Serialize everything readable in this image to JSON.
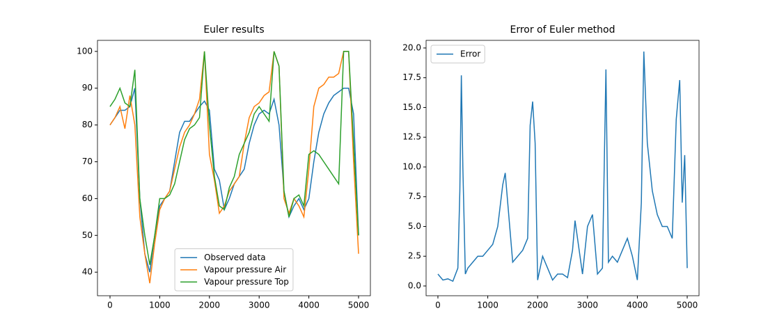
{
  "chart_data": [
    {
      "type": "line",
      "title": "Euler results",
      "x": [
        0,
        100,
        200,
        300,
        400,
        500,
        600,
        700,
        800,
        900,
        1000,
        1100,
        1200,
        1300,
        1400,
        1500,
        1600,
        1700,
        1800,
        1900,
        2000,
        2100,
        2200,
        2300,
        2400,
        2500,
        2600,
        2700,
        2800,
        2900,
        3000,
        3100,
        3200,
        3300,
        3400,
        3500,
        3600,
        3700,
        3800,
        3900,
        4000,
        4100,
        4200,
        4300,
        4400,
        4500,
        4600,
        4700,
        4800,
        4900,
        5000
      ],
      "series": [
        {
          "name": "Observed data",
          "color": "#1f77b4",
          "values": [
            80,
            82,
            84,
            84,
            85,
            90,
            60,
            45,
            40,
            50,
            58,
            60,
            62,
            70,
            78,
            81,
            81,
            83,
            85,
            86.5,
            84,
            68,
            65,
            57,
            60,
            64,
            66,
            68,
            75,
            80,
            83,
            84,
            83,
            87,
            80,
            62,
            55,
            58,
            60,
            57,
            60,
            70,
            78,
            83,
            86,
            88,
            89,
            90,
            90,
            83,
            50
          ]
        },
        {
          "name": "Vapour pressure Air",
          "color": "#ff7f0e",
          "values": [
            80,
            82,
            85,
            79,
            88,
            80,
            55,
            45,
            37,
            48,
            57,
            60,
            62,
            68,
            74,
            78,
            80,
            83,
            87,
            100,
            72,
            65,
            56,
            58,
            62,
            64,
            66,
            75,
            82,
            85,
            86,
            88,
            89,
            100,
            96,
            60,
            56,
            60,
            58,
            55,
            68,
            85,
            90,
            91,
            93,
            93,
            94,
            100,
            100,
            70,
            45
          ]
        },
        {
          "name": "Vapour pressure Top",
          "color": "#2ca02c",
          "values": [
            85,
            87,
            90,
            86,
            85,
            95,
            60,
            50,
            42,
            50,
            60,
            60,
            61,
            64,
            70,
            76,
            79,
            80,
            82,
            100,
            80,
            66,
            58,
            57,
            63,
            66,
            72,
            75,
            78,
            83,
            85,
            83,
            81,
            100,
            96,
            62,
            55,
            60,
            61,
            58,
            72,
            73,
            72,
            70,
            68,
            66,
            64,
            100,
            100,
            75,
            50
          ]
        }
      ],
      "xlim": [
        -252,
        5238
      ],
      "ylim": [
        33.6,
        103.0
      ],
      "xticks": [
        0,
        1000,
        2000,
        3000,
        4000,
        5000
      ],
      "yticks": [
        40,
        50,
        60,
        70,
        80,
        90,
        100
      ],
      "legend": "lower center"
    },
    {
      "type": "line",
      "title": "Error of Euler method",
      "x": [
        0,
        100,
        200,
        300,
        400,
        440,
        470,
        500,
        550,
        600,
        700,
        800,
        900,
        1000,
        1100,
        1200,
        1300,
        1350,
        1400,
        1500,
        1600,
        1700,
        1800,
        1850,
        1900,
        1950,
        2000,
        2100,
        2200,
        2300,
        2400,
        2500,
        2600,
        2700,
        2750,
        2800,
        2900,
        3000,
        3100,
        3200,
        3300,
        3370,
        3420,
        3500,
        3600,
        3700,
        3800,
        3900,
        4000,
        4080,
        4130,
        4200,
        4300,
        4400,
        4500,
        4600,
        4700,
        4780,
        4850,
        4900,
        4950,
        5000
      ],
      "series": [
        {
          "name": "Error",
          "color": "#1f77b4",
          "values": [
            1,
            0.5,
            0.6,
            0.4,
            1.5,
            8,
            17.7,
            10,
            1,
            1.5,
            2,
            2.5,
            2.5,
            3,
            3.5,
            5,
            8.5,
            9.5,
            7,
            2,
            2.5,
            3,
            4,
            13.5,
            15.5,
            12,
            0.5,
            2.5,
            1.5,
            0.5,
            1,
            1,
            0.7,
            3,
            5.5,
            4,
            1,
            5,
            6,
            1,
            1.5,
            18.2,
            2,
            2.5,
            2,
            3,
            4,
            2.5,
            0.5,
            7,
            19.7,
            12,
            8,
            6,
            5,
            5,
            4,
            14,
            17.3,
            7,
            11,
            1.5
          ]
        }
      ],
      "xlim": [
        -237,
        5237
      ],
      "ylim": [
        -0.82,
        20.64
      ],
      "xticks": [
        0,
        1000,
        2000,
        3000,
        4000,
        5000
      ],
      "yticks": [
        {
          "value": 0,
          "label": "0.0"
        },
        {
          "value": 2.5,
          "label": "2.5"
        },
        {
          "value": 5,
          "label": "5.0"
        },
        {
          "value": 7.5,
          "label": "7.5"
        },
        {
          "value": 10,
          "label": "10.0"
        },
        {
          "value": 12.5,
          "label": "12.5"
        },
        {
          "value": 15,
          "label": "15.0"
        },
        {
          "value": 17.5,
          "label": "17.5"
        },
        {
          "value": 20,
          "label": "20.0"
        }
      ],
      "legend": "upper left"
    }
  ]
}
